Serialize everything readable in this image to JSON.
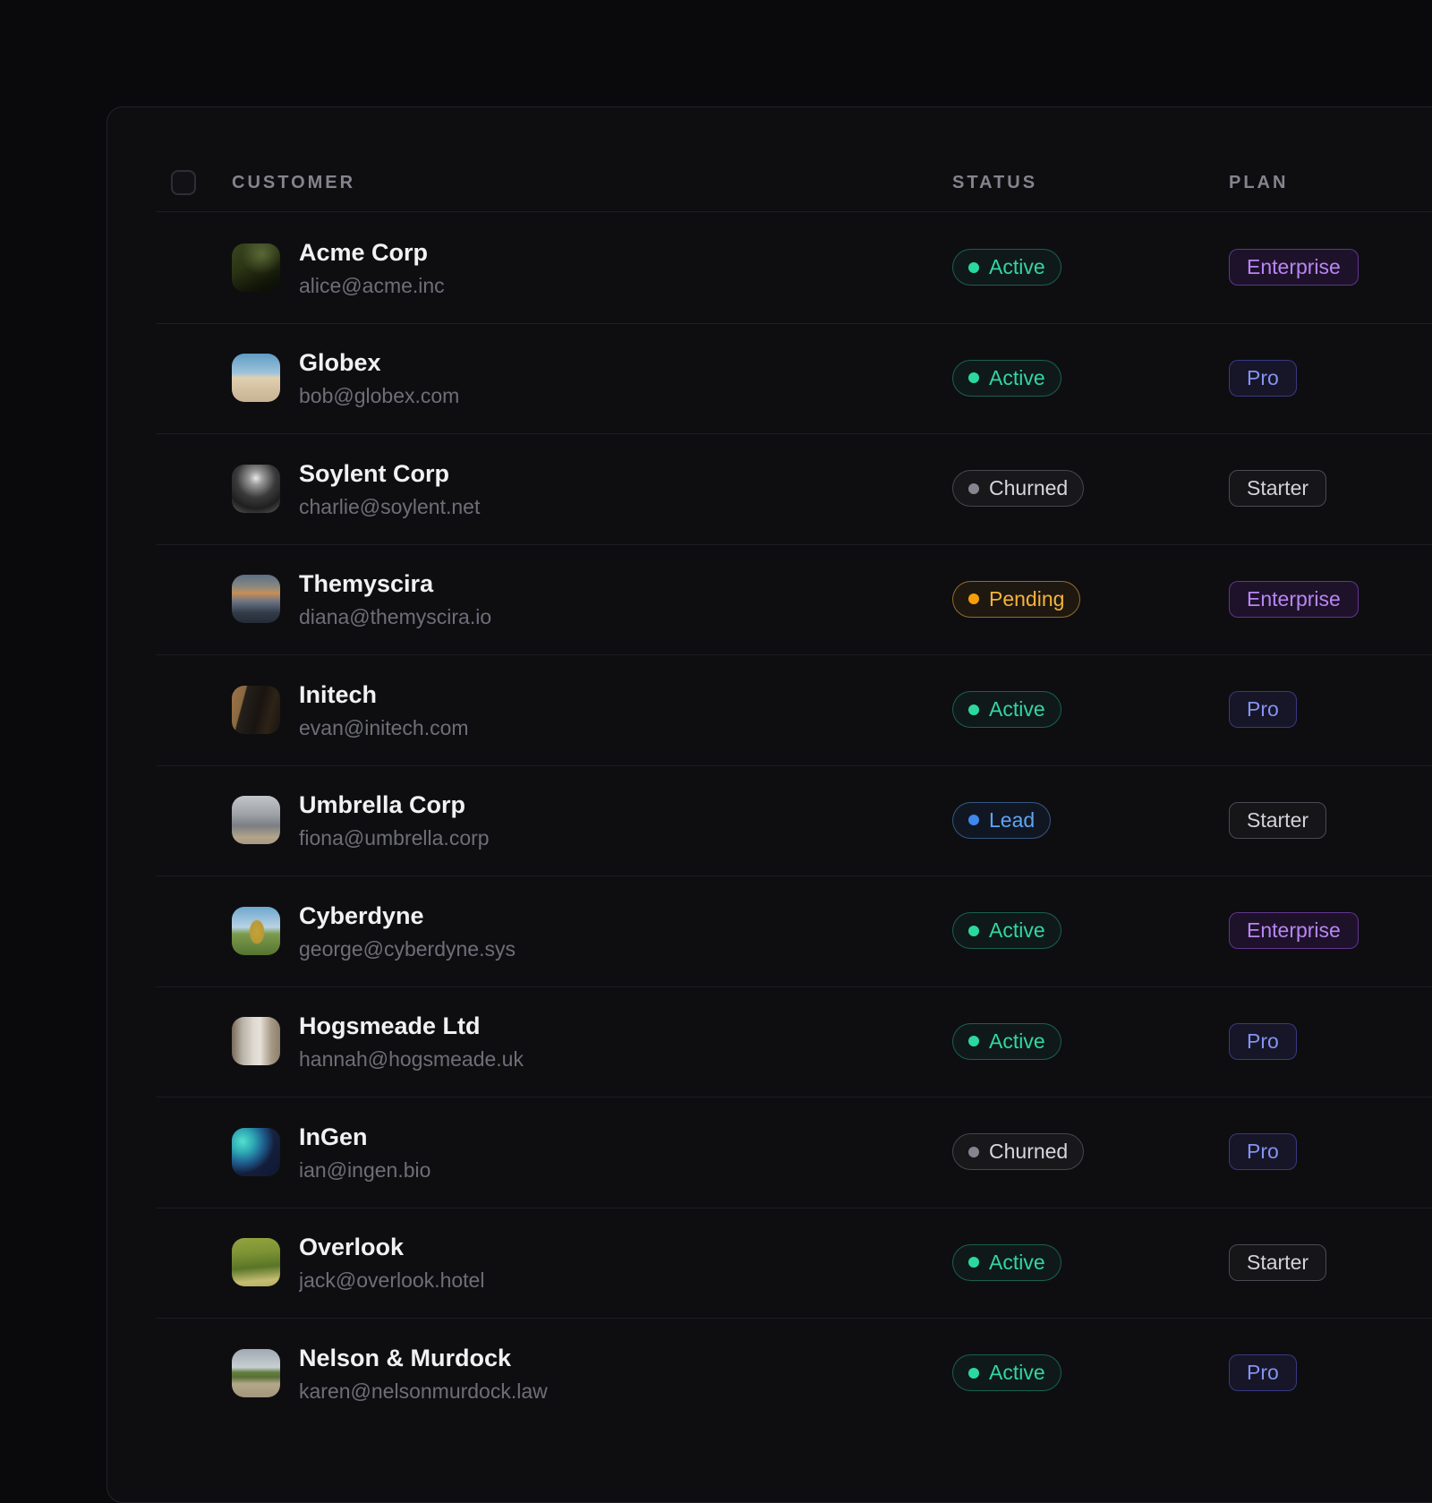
{
  "table": {
    "columns": {
      "customer": "CUSTOMER",
      "status": "STATUS",
      "plan": "PLAN"
    },
    "select_all_checked": false,
    "rows": [
      {
        "name": "Acme Corp",
        "email": "alice@acme.inc",
        "status": {
          "label": "Active",
          "key": "active"
        },
        "plan": {
          "label": "Enterprise",
          "key": "enterprise"
        },
        "avatar": {
          "description": "dark-green-aurora-night-photo",
          "gradient": "radial-gradient(circle at 62% 22%, rgba(190,215,130,0.30), rgba(190,215,130,0) 42%), linear-gradient(155deg, #3a451f 0%, #2c3615 40%, #121708 75%, #0a0d05 100%)"
        }
      },
      {
        "name": "Globex",
        "email": "bob@globex.com",
        "status": {
          "label": "Active",
          "key": "active"
        },
        "plan": {
          "label": "Pro",
          "key": "pro"
        },
        "avatar": {
          "description": "beach-sky-and-sand-photo",
          "gradient": "linear-gradient(180deg, #5f9cc4 0%, #9ec3db 40%, #e0d0b0 50%, #d3c0a0 75%, #c7b493 100%)"
        }
      },
      {
        "name": "Soylent Corp",
        "email": "charlie@soylent.net",
        "status": {
          "label": "Churned",
          "key": "churned"
        },
        "plan": {
          "label": "Starter",
          "key": "starter"
        },
        "avatar": {
          "description": "black-and-white-forest-road-photo",
          "gradient": "radial-gradient(circle at 50% 28%, #e8e8e8 0%, #9a9a9a 16%, #3a3a3a 46%, #1f1f1f 72%, #5f5f5f 100%)"
        }
      },
      {
        "name": "Themyscira",
        "email": "diana@themyscira.io",
        "status": {
          "label": "Pending",
          "key": "pending"
        },
        "plan": {
          "label": "Enterprise",
          "key": "enterprise"
        },
        "avatar": {
          "description": "dusk-landscape-orange-clouds-photo",
          "gradient": "linear-gradient(180deg, #5d6e85 0%, #8d8a7e 26%, #c98e54 38%, #6d7585 55%, #333d4a 78%, #232b36 100%)"
        }
      },
      {
        "name": "Initech",
        "email": "evan@initech.com",
        "status": {
          "label": "Active",
          "key": "active"
        },
        "plan": {
          "label": "Pro",
          "key": "pro"
        },
        "avatar": {
          "description": "dark-flat-lay-gear-photo",
          "gradient": "linear-gradient(105deg, #9b7448 0%, #8a6840 24%, #26201b 26%, #191411 55%, #2e2317 76%, #191310 100%)"
        }
      },
      {
        "name": "Umbrella Corp",
        "email": "fiona@umbrella.corp",
        "status": {
          "label": "Lead",
          "key": "lead"
        },
        "plan": {
          "label": "Starter",
          "key": "starter"
        },
        "avatar": {
          "description": "gray-clouds-smoke-photo",
          "gradient": "linear-gradient(180deg, #c2c5c9 0%, #9fa3a7 38%, #7b7e82 62%, #b3a58b 86%, #a89a80 100%)"
        }
      },
      {
        "name": "Cyberdyne",
        "email": "george@cyberdyne.sys",
        "status": {
          "label": "Active",
          "key": "active"
        },
        "plan": {
          "label": "Enterprise",
          "key": "enterprise"
        },
        "avatar": {
          "description": "pineapple-in-field-blue-sky-photo",
          "gradient": "radial-gradient(ellipse 16% 26% at 52% 52%, #c2a23a 0%, #b99a36 88%, rgba(185,154,54,0) 100%), linear-gradient(180deg, #6ea7cf 0%, #b8d2e2 42%, #7d9b4e 56%, #55742f 100%)"
        }
      },
      {
        "name": "Hogsmeade Ltd",
        "email": "hannah@hogsmeade.uk",
        "status": {
          "label": "Active",
          "key": "active"
        },
        "plan": {
          "label": "Pro",
          "key": "pro"
        },
        "avatar": {
          "description": "waterfall-photo",
          "gradient": "linear-gradient(90deg, #7a6a58 0%, #b9b2a8 22%, #ded8d0 45%, #e6e1da 58%, #a59884 82%, #8d7f6b 100%)"
        }
      },
      {
        "name": "InGen",
        "email": "ian@ingen.bio",
        "status": {
          "label": "Churned",
          "key": "churned"
        },
        "plan": {
          "label": "Pro",
          "key": "pro"
        },
        "avatar": {
          "description": "teal-nebula-dark-blue-photo",
          "gradient": "radial-gradient(circle at 22% 28%, #54e0cc 0%, #2fa9b5 22%, #1f5e8f 42%, rgba(31,94,143,0) 62%), linear-gradient(135deg, #1c2a4e 0%, #16203f 52%, #0f1830 100%)"
        }
      },
      {
        "name": "Overlook",
        "email": "jack@overlook.hotel",
        "status": {
          "label": "Active",
          "key": "active"
        },
        "plan": {
          "label": "Starter",
          "key": "starter"
        },
        "avatar": {
          "description": "green-valley-landscape-photo",
          "gradient": "linear-gradient(175deg, #93a43f 0%, #7c9234 32%, #5a7527 60%, #c5bd72 86%, #b5ad65 100%)"
        }
      },
      {
        "name": "Nelson & Murdock",
        "email": "karen@nelsonmurdock.law",
        "status": {
          "label": "Active",
          "key": "active"
        },
        "plan": {
          "label": "Pro",
          "key": "pro"
        },
        "avatar": {
          "description": "road-to-horizon-cloudy-sky-photo",
          "gradient": "linear-gradient(180deg, #9fa9b2 0%, #c8cfd4 38%, #63803f 48%, #586f36 58%, #b4a789 72%, #a3977c 100%)"
        }
      }
    ]
  },
  "colors": {
    "status": {
      "active": {
        "text": "#33d6a0",
        "dot": "#2bd99f",
        "border": "rgba(45,212,160,0.38)",
        "bg": "rgba(45,212,160,0.06)"
      },
      "churned": {
        "text": "#d6d6dc",
        "dot": "#85858f",
        "border": "#46464e",
        "bg": "rgba(255,255,255,0.045)"
      },
      "pending": {
        "text": "#f6b33d",
        "dot": "#f59e0b",
        "border": "rgba(245,179,61,0.55)",
        "bg": "rgba(245,158,11,0.07)"
      },
      "lead": {
        "text": "#5fa5f5",
        "dot": "#4087ec",
        "border": "rgba(95,165,245,0.45)",
        "bg": "rgba(64,135,236,0.08)"
      }
    },
    "plan": {
      "enterprise": {
        "text": "#b886f2",
        "border": "rgba(168,85,247,0.50)",
        "bg": "rgba(147,51,234,0.12)"
      },
      "pro": {
        "text": "#8593f0",
        "border": "rgba(99,102,241,0.45)",
        "bg": "rgba(99,102,241,0.10)"
      },
      "starter": {
        "text": "#d2d2d8",
        "border": "#4a4a52",
        "bg": "rgba(255,255,255,0.035)"
      }
    }
  }
}
